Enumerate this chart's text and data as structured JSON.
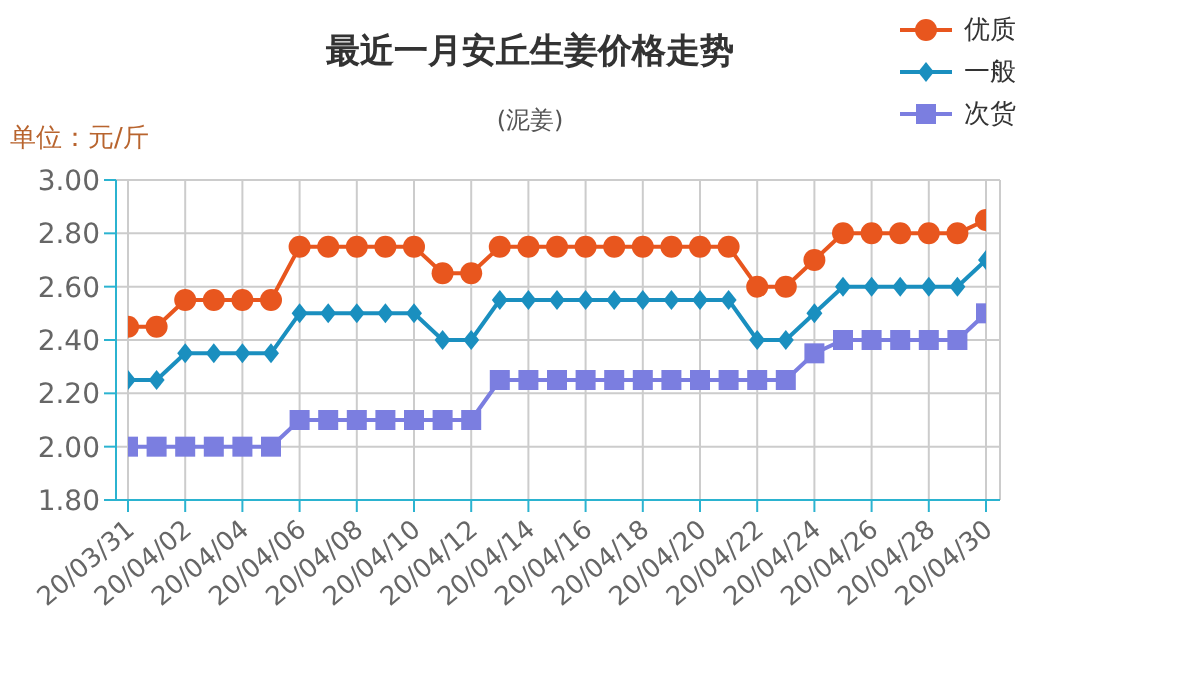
{
  "chart_data": {
    "type": "line",
    "title": "最近一月安丘生姜价格走势",
    "subtitle": "(泥姜)",
    "ylabel": "单位：元/斤",
    "categories": [
      "20/03/31",
      null,
      "20/04/02",
      null,
      "20/04/04",
      null,
      "20/04/06",
      null,
      "20/04/08",
      null,
      "20/04/10",
      null,
      "20/04/12",
      null,
      "20/04/14",
      null,
      "20/04/16",
      null,
      "20/04/18",
      null,
      "20/04/20",
      null,
      "20/04/22",
      null,
      "20/04/24",
      null,
      "20/04/26",
      null,
      "20/04/28",
      null,
      "20/04/30"
    ],
    "series": [
      {
        "name": "优质",
        "color": "#e8561e",
        "marker": "circle",
        "values": [
          2.45,
          2.45,
          2.55,
          2.55,
          2.55,
          2.55,
          2.75,
          2.75,
          2.75,
          2.75,
          2.75,
          2.65,
          2.65,
          2.75,
          2.75,
          2.75,
          2.75,
          2.75,
          2.75,
          2.75,
          2.75,
          2.75,
          2.6,
          2.6,
          2.7,
          2.8,
          2.8,
          2.8,
          2.8,
          2.8,
          2.85
        ]
      },
      {
        "name": "一般",
        "color": "#1a8fbf",
        "marker": "diamond",
        "values": [
          2.25,
          2.25,
          2.35,
          2.35,
          2.35,
          2.35,
          2.5,
          2.5,
          2.5,
          2.5,
          2.5,
          2.4,
          2.4,
          2.55,
          2.55,
          2.55,
          2.55,
          2.55,
          2.55,
          2.55,
          2.55,
          2.55,
          2.4,
          2.4,
          2.5,
          2.6,
          2.6,
          2.6,
          2.6,
          2.6,
          2.7
        ]
      },
      {
        "name": "次货",
        "color": "#7b7ee0",
        "marker": "square",
        "values": [
          2.0,
          2.0,
          2.0,
          2.0,
          2.0,
          2.0,
          2.1,
          2.1,
          2.1,
          2.1,
          2.1,
          2.1,
          2.1,
          2.25,
          2.25,
          2.25,
          2.25,
          2.25,
          2.25,
          2.25,
          2.25,
          2.25,
          2.25,
          2.25,
          2.35,
          2.4,
          2.4,
          2.4,
          2.4,
          2.4,
          2.5
        ]
      }
    ],
    "ylim": [
      1.8,
      3.0
    ],
    "yticks": [
      {
        "value": 1.8,
        "label": "1.80"
      },
      {
        "value": 2.0,
        "label": "2.00"
      },
      {
        "value": 2.2,
        "label": "2.20"
      },
      {
        "value": 2.4,
        "label": "2.40"
      },
      {
        "value": 2.6,
        "label": "2.60"
      },
      {
        "value": 2.8,
        "label": "2.80"
      },
      {
        "value": 3.0,
        "label": "3.00"
      }
    ],
    "grid": true,
    "legend": "top right"
  }
}
